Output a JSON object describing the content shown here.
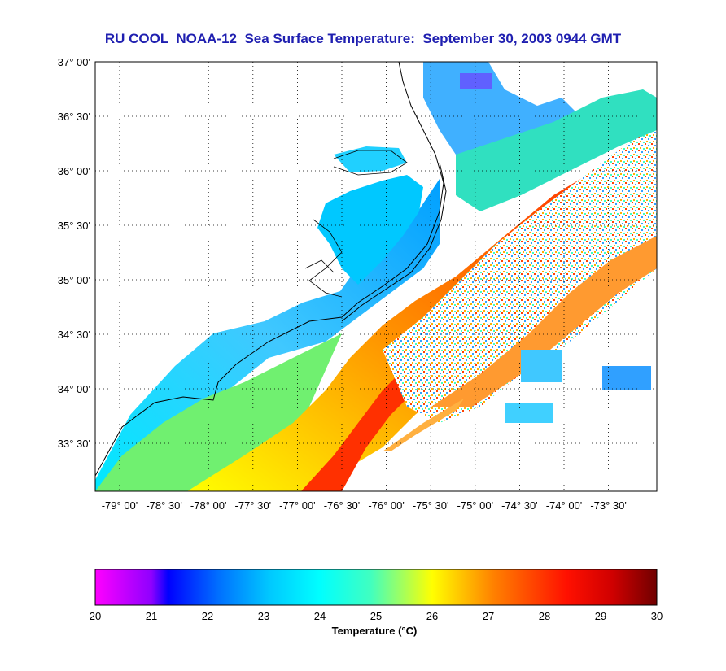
{
  "title": "RU COOL  NOAA-12  Sea Surface Temperature:  September 30, 2003 0944 GMT",
  "map": {
    "lat_ticks": [
      "37° 00'",
      "36° 30'",
      "36° 00'",
      "35° 30'",
      "35° 00'",
      "34° 30'",
      "34° 00'",
      "33° 30'"
    ],
    "lon_ticks": [
      "-79° 00'",
      "-78° 30'",
      "-78° 00'",
      "-77° 30'",
      "-77° 00'",
      "-76° 30'",
      "-76° 00'",
      "-75° 30'",
      "-75° 00'",
      "-74° 30'",
      "-74° 00'",
      "-73° 30'"
    ],
    "land_color": "#ffffff",
    "coast_color": "#000000",
    "grid": "dotted"
  },
  "colorbar": {
    "ticks": [
      "20",
      "21",
      "22",
      "23",
      "24",
      "25",
      "26",
      "27",
      "28",
      "29",
      "30"
    ],
    "min": 20,
    "max": 30,
    "label": "Temperature (°C)",
    "stops": [
      {
        "t": 20,
        "color": "#ff00ff"
      },
      {
        "t": 21,
        "color": "#8f00ff"
      },
      {
        "t": 21.3,
        "color": "#0000ff"
      },
      {
        "t": 22.2,
        "color": "#0070ff"
      },
      {
        "t": 23.1,
        "color": "#00c8ff"
      },
      {
        "t": 24,
        "color": "#00ffff"
      },
      {
        "t": 24.9,
        "color": "#40ffc0"
      },
      {
        "t": 26,
        "color": "#ffff00"
      },
      {
        "t": 27.1,
        "color": "#ff8000"
      },
      {
        "t": 28.4,
        "color": "#ff1000"
      },
      {
        "t": 29.2,
        "color": "#d00000"
      },
      {
        "t": 30,
        "color": "#700000"
      }
    ]
  }
}
